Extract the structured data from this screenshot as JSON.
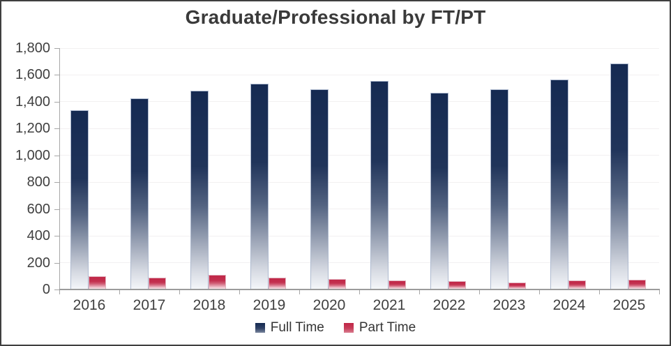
{
  "chart_data": {
    "type": "bar",
    "title": "Graduate/Professional by FT/PT",
    "categories": [
      "2016",
      "2017",
      "2018",
      "2019",
      "2020",
      "2021",
      "2022",
      "2023",
      "2024",
      "2025"
    ],
    "series": [
      {
        "name": "Full Time",
        "color_top": "#152A52",
        "color_bottom": "#F4F6F9",
        "edge_color": "#AEBAD0",
        "values": [
          1330,
          1420,
          1480,
          1530,
          1490,
          1550,
          1460,
          1490,
          1560,
          1680
        ]
      },
      {
        "name": "Part Time",
        "color_top": "#C02747",
        "color_bottom": "#F8E3E8",
        "edge_color": "#E2B2BE",
        "values": [
          95,
          85,
          105,
          85,
          75,
          65,
          55,
          45,
          65,
          70
        ]
      }
    ],
    "xlabel": "",
    "ylabel": "",
    "ylim": [
      0,
      1800
    ],
    "ytick_step": 200,
    "ytick_labels": [
      "0",
      "200",
      "400",
      "600",
      "800",
      "1,000",
      "1,200",
      "1,400",
      "1,600",
      "1,800"
    ],
    "grid": "horizontal-light",
    "legend_position": "bottom-center"
  },
  "colors": {
    "full_time_navy": "#152A52",
    "part_time_crimson": "#C02747",
    "axis_gray": "#A6A6A6",
    "gridline_gray": "#F2F0F1",
    "text_dark_gray": "#3A3A3A",
    "background": "#FFFFFF"
  }
}
